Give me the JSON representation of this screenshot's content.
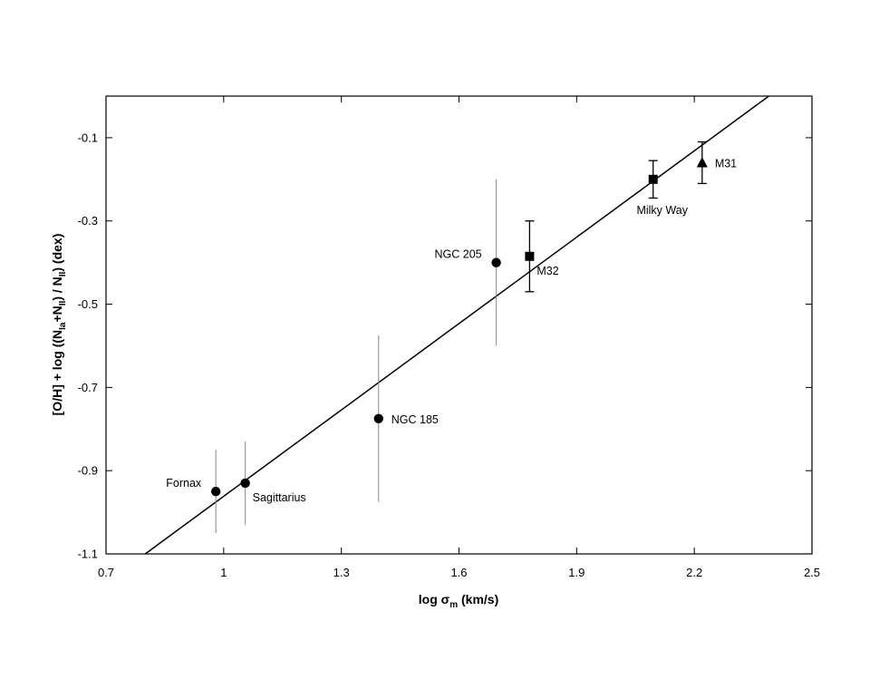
{
  "chart_data": {
    "type": "scatter",
    "title": "",
    "xlabel": {
      "main": "log σ",
      "sub": "m",
      "unit": "(km/s)"
    },
    "ylabel": {
      "prefix": "[O/H] + log ((N",
      "sub1": "Ia",
      "mid": "+N",
      "sub2": "II",
      "mid2": ") / N",
      "sub3": "II",
      "suffix": ")",
      "unit": "(dex)"
    },
    "xlim": [
      0.7,
      2.5
    ],
    "ylim": [
      -1.1,
      0.0
    ],
    "xticks": [
      "0.7",
      "1",
      "1.3",
      "1.6",
      "1.9",
      "2.2",
      "2.5"
    ],
    "xtick_values": [
      0.7,
      1.0,
      1.3,
      1.6,
      1.9,
      2.2,
      2.5
    ],
    "yticks": [
      "-0.1",
      "-0.3",
      "-0.5",
      "-0.7",
      "-0.9",
      "-1.1"
    ],
    "ytick_values": [
      -0.1,
      -0.3,
      -0.5,
      -0.7,
      -0.9,
      -1.1
    ],
    "grid": false,
    "legend": "none",
    "fit_line": {
      "x": [
        0.8,
        2.39
      ],
      "y": [
        -1.1,
        0.0
      ]
    },
    "points": [
      {
        "label": "Fornax",
        "x": 0.98,
        "y": -0.95,
        "err_low": -1.05,
        "err_high": -0.85,
        "marker": "circle",
        "caps": false,
        "err_color": "#888888",
        "label_side": "left"
      },
      {
        "label": "Sagittarius",
        "x": 1.055,
        "y": -0.93,
        "err_low": -1.03,
        "err_high": -0.83,
        "marker": "circle",
        "caps": false,
        "err_color": "#888888",
        "label_side": "below-right"
      },
      {
        "label": "NGC 185",
        "x": 1.395,
        "y": -0.775,
        "err_low": -0.975,
        "err_high": -0.575,
        "marker": "circle",
        "caps": false,
        "err_color": "#888888",
        "label_side": "right"
      },
      {
        "label": "NGC 205",
        "x": 1.695,
        "y": -0.4,
        "err_low": -0.6,
        "err_high": -0.2,
        "marker": "circle",
        "caps": false,
        "err_color": "#888888",
        "label_side": "left"
      },
      {
        "label": "M32",
        "x": 1.78,
        "y": -0.385,
        "err_low": -0.47,
        "err_high": -0.3,
        "marker": "square",
        "caps": true,
        "err_color": "#000000",
        "label_side": "below-right"
      },
      {
        "label": "Milky Way",
        "x": 2.095,
        "y": -0.2,
        "err_low": -0.245,
        "err_high": -0.155,
        "marker": "square",
        "caps": true,
        "err_color": "#000000",
        "label_side": "below"
      },
      {
        "label": "M31",
        "x": 2.22,
        "y": -0.16,
        "err_low": -0.21,
        "err_high": -0.11,
        "marker": "triangle",
        "caps": true,
        "err_color": "#000000",
        "label_side": "right"
      }
    ]
  }
}
